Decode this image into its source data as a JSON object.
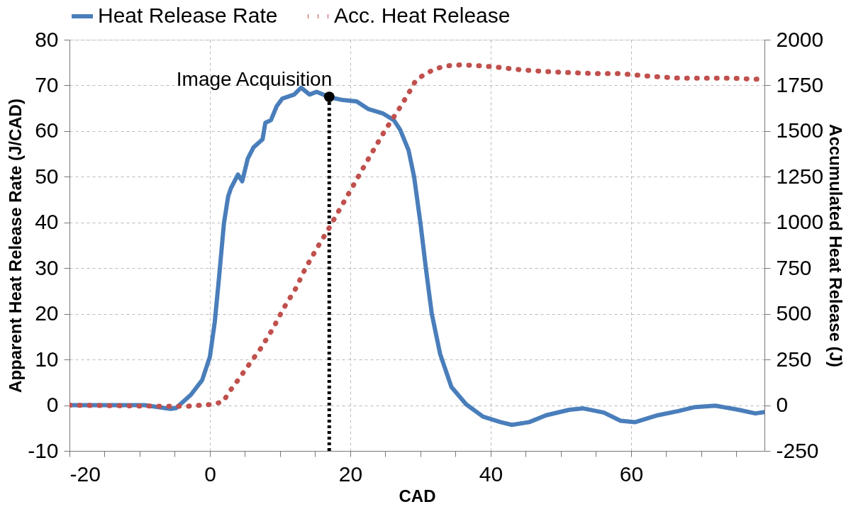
{
  "chart_data": {
    "type": "line",
    "xlabel": "CAD",
    "ylabel": "Apparent Heat Release Rate (J/CAD)",
    "y2label": "Accumulated Heat Release (J)",
    "xlim": [
      -20,
      79
    ],
    "xticks": [
      -20,
      {
        "value": -15,
        "label": null
      },
      {
        "value": -10,
        "label": null
      },
      {
        "value": -5,
        "label": null
      },
      0,
      {
        "value": 5,
        "label": null
      },
      {
        "value": 10,
        "label": null
      },
      {
        "value": 15,
        "label": null
      },
      20,
      {
        "value": 25,
        "label": null
      },
      {
        "value": 30,
        "label": null
      },
      {
        "value": 35,
        "label": null
      },
      40,
      {
        "value": 45,
        "label": null
      },
      {
        "value": 50,
        "label": null
      },
      {
        "value": 55,
        "label": null
      },
      60,
      {
        "value": 65,
        "label": null
      },
      {
        "value": 70,
        "label": null
      },
      {
        "value": 75,
        "label": null
      }
    ],
    "ylim": [
      -10,
      80
    ],
    "yticks": [
      -10,
      0,
      10,
      20,
      30,
      40,
      50,
      60,
      70,
      80
    ],
    "y2lim": [
      -250,
      2000
    ],
    "y2ticks": [
      -250,
      0,
      250,
      500,
      750,
      1000,
      1250,
      1500,
      1750,
      2000
    ],
    "grid": true,
    "legend": "top",
    "series": [
      {
        "name": "Heat Release Rate",
        "color": "#4a7ebb",
        "line_style": "solid",
        "x": [
          -20,
          -9.3,
          -5.6,
          -4.8,
          -2.7,
          -1.1,
          0,
          0.7,
          1.3,
          2,
          2.6,
          3,
          4,
          4.6,
          5.4,
          6.2,
          7.5,
          7.9,
          8.7,
          9.5,
          10.3,
          12,
          13,
          14.2,
          15.2,
          17.1,
          18.9,
          20.9,
          22.6,
          24.6,
          26.2,
          27.1,
          28.3,
          29.1,
          30,
          30.8,
          31.6,
          32.8,
          34.4,
          36.5,
          38.9,
          41.4,
          43,
          45.5,
          47.9,
          51.2,
          53.2,
          56.1,
          58.5,
          60.6,
          63.8,
          66.7,
          69.1,
          72,
          75.3,
          77.7,
          79
        ],
        "values": [
          0,
          0,
          -0.8,
          -0.6,
          2.3,
          5.5,
          10.6,
          18.3,
          27.9,
          39.8,
          45.7,
          47.5,
          50.5,
          49,
          54,
          56.4,
          58.2,
          61.8,
          62.4,
          65.4,
          67.1,
          68,
          69.5,
          68,
          68.6,
          67.4,
          66.8,
          66.5,
          64.8,
          63.9,
          62.4,
          60.3,
          55.8,
          49.9,
          39.8,
          29.6,
          20.1,
          11.2,
          4,
          0.2,
          -2.5,
          -3.7,
          -4.3,
          -3.7,
          -2.2,
          -1,
          -0.7,
          -1.6,
          -3.4,
          -3.7,
          -2.2,
          -1.3,
          -0.4,
          -0.1,
          -1,
          -1.8,
          -1.5
        ]
      },
      {
        "name": "Acc. Heat Release",
        "color": "#c0504d",
        "line_style": "dotted",
        "axis": "y2",
        "x": [
          -20,
          -6,
          -3.3,
          0.2,
          1.9,
          2.7,
          3.6,
          5.4,
          7.3,
          9,
          10.5,
          12.2,
          13.6,
          15.2,
          16.9,
          18.5,
          20.1,
          21.7,
          23.3,
          25,
          26.8,
          28.5,
          29.3,
          30.6,
          32.2,
          33.8,
          35.6,
          37.3,
          40.6,
          44.1,
          47.7,
          51.2,
          54.7,
          58.2,
          60,
          63.3,
          66.8,
          70.3,
          74,
          77.7,
          79
        ],
        "values": [
          0,
          -6,
          -6,
          4,
          19,
          71,
          116,
          213,
          314,
          421,
          530,
          637,
          748,
          856,
          964,
          1073,
          1180,
          1289,
          1396,
          1507,
          1612,
          1720,
          1775,
          1812,
          1842,
          1857,
          1862,
          1860,
          1851,
          1836,
          1826,
          1820,
          1815,
          1815,
          1809,
          1798,
          1790,
          1790,
          1790,
          1784,
          1786
        ]
      },
      {
        "type": "line",
        "color": "#000000",
        "line_style": "dotted",
        "x": [
          17,
          17
        ],
        "values": [
          -10,
          67.5
        ]
      },
      {
        "type": "scatter",
        "color": "#000000",
        "marker": "circle",
        "x": [
          17
        ],
        "values": [
          67.5
        ]
      }
    ],
    "annotations": [
      {
        "text": "Image Acquisition",
        "x": 17,
        "y": 67.5
      }
    ]
  }
}
